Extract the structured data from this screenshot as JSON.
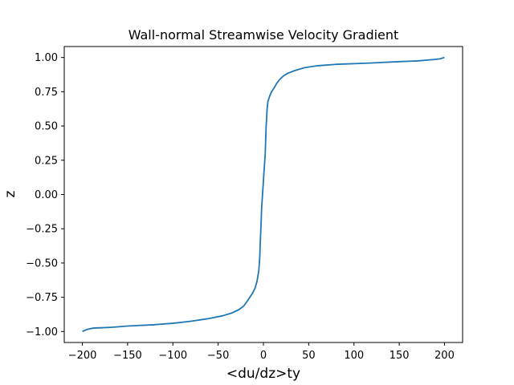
{
  "chart_data": {
    "type": "line",
    "title": "Wall-normal Streamwise Velocity Gradient",
    "xlabel": "<du/dz>ty",
    "ylabel": "z",
    "xlim": [
      -220,
      220
    ],
    "ylim": [
      -1.08,
      1.08
    ],
    "xticks": [
      -200,
      -150,
      -100,
      -50,
      0,
      50,
      100,
      150,
      200
    ],
    "xtick_labels": [
      "−200",
      "−150",
      "−100",
      "−50",
      "0",
      "50",
      "100",
      "150",
      "200"
    ],
    "yticks": [
      1.0,
      0.75,
      0.5,
      0.25,
      0.0,
      -0.25,
      -0.5,
      -0.75,
      -1.0
    ],
    "ytick_labels": [
      "1.00",
      "0.75",
      "0.50",
      "0.25",
      "0.00",
      "−0.25",
      "−0.50",
      "−0.75",
      "−1.00"
    ],
    "grid": false,
    "color": "#1f77b4",
    "series": [
      {
        "x": [
          -200,
          -195,
          -188,
          -170,
          -150,
          -120,
          -100,
          -80,
          -60,
          -45,
          -35,
          -27,
          -22,
          -18,
          -15,
          -12,
          -9,
          -7,
          -5,
          -4,
          -3.5,
          -2.5,
          -2,
          -1,
          0,
          1,
          2,
          2.5,
          3,
          3.5,
          4,
          5,
          7,
          9,
          12,
          15,
          18,
          22,
          27,
          35,
          45,
          60,
          80,
          100,
          120,
          150,
          170,
          188,
          195,
          200
        ],
        "y": [
          -1.0,
          -0.985,
          -0.975,
          -0.97,
          -0.96,
          -0.95,
          -0.94,
          -0.925,
          -0.905,
          -0.885,
          -0.865,
          -0.84,
          -0.815,
          -0.78,
          -0.75,
          -0.72,
          -0.68,
          -0.63,
          -0.55,
          -0.45,
          -0.35,
          -0.2,
          -0.1,
          0.0,
          0.1,
          0.2,
          0.3,
          0.4,
          0.5,
          0.55,
          0.62,
          0.68,
          0.72,
          0.75,
          0.78,
          0.815,
          0.84,
          0.865,
          0.885,
          0.905,
          0.925,
          0.94,
          0.95,
          0.955,
          0.96,
          0.97,
          0.975,
          0.985,
          0.99,
          1.0
        ]
      }
    ]
  }
}
